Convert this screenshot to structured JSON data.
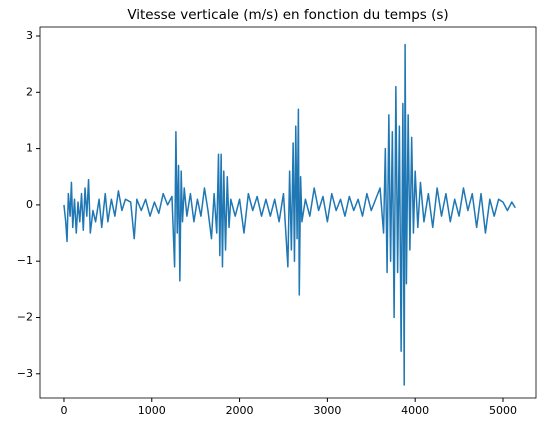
{
  "chart_data": {
    "type": "line",
    "title": "Vitesse verticale (m/s) en fonction du temps (s)",
    "color": "#1f77b4",
    "x": [
      0,
      20,
      35,
      50,
      70,
      85,
      100,
      120,
      140,
      160,
      180,
      200,
      220,
      240,
      260,
      280,
      300,
      330,
      360,
      400,
      430,
      470,
      500,
      540,
      580,
      620,
      660,
      700,
      760,
      800,
      830,
      880,
      930,
      980,
      1030,
      1080,
      1130,
      1180,
      1230,
      1260,
      1275,
      1290,
      1305,
      1320,
      1335,
      1350,
      1370,
      1400,
      1440,
      1480,
      1520,
      1560,
      1600,
      1640,
      1680,
      1710,
      1740,
      1760,
      1775,
      1790,
      1805,
      1820,
      1840,
      1860,
      1880,
      1900,
      1950,
      2000,
      2050,
      2100,
      2150,
      2200,
      2250,
      2300,
      2350,
      2400,
      2450,
      2500,
      2550,
      2570,
      2590,
      2610,
      2625,
      2640,
      2655,
      2670,
      2680,
      2695,
      2710,
      2750,
      2800,
      2850,
      2900,
      2950,
      3000,
      3050,
      3100,
      3150,
      3200,
      3250,
      3300,
      3350,
      3400,
      3450,
      3500,
      3550,
      3600,
      3640,
      3660,
      3680,
      3700,
      3720,
      3740,
      3760,
      3780,
      3800,
      3820,
      3840,
      3860,
      3875,
      3885,
      3900,
      3920,
      3940,
      3960,
      3980,
      4000,
      4030,
      4060,
      4100,
      4150,
      4200,
      4250,
      4300,
      4350,
      4400,
      4450,
      4500,
      4550,
      4600,
      4650,
      4700,
      4750,
      4800,
      4850,
      4900,
      4950,
      5000,
      5050,
      5100,
      5140
    ],
    "values": [
      0,
      -0.3,
      -0.65,
      0.2,
      -0.2,
      0.4,
      -0.4,
      0.1,
      -0.5,
      0.05,
      -0.3,
      0.2,
      -0.45,
      0.3,
      -0.2,
      0.45,
      -0.5,
      -0.1,
      -0.3,
      0.1,
      -0.4,
      0.2,
      -0.3,
      0.1,
      -0.2,
      0.25,
      -0.1,
      0.1,
      0.05,
      -0.6,
      0.1,
      -0.1,
      0.1,
      -0.2,
      0.05,
      -0.15,
      0.2,
      0,
      0.15,
      -1.1,
      1.3,
      -0.5,
      0.7,
      -1.35,
      0.6,
      -0.3,
      0.3,
      -0.2,
      0.2,
      -0.3,
      0.1,
      -0.2,
      0.3,
      -0.1,
      -0.6,
      0.2,
      -0.5,
      0.9,
      -0.9,
      0.9,
      -1.1,
      0.6,
      -0.8,
      0.5,
      -0.4,
      0.1,
      -0.2,
      0.1,
      -0.5,
      0.2,
      -0.1,
      0.15,
      -0.2,
      0.1,
      -0.2,
      0.1,
      -0.3,
      0.2,
      -1.1,
      0.6,
      -0.8,
      1.1,
      -1.0,
      1.4,
      -0.6,
      1.7,
      -1.6,
      0.5,
      -0.3,
      0.1,
      -0.2,
      0.3,
      -0.1,
      0.15,
      -0.3,
      0.2,
      -0.1,
      0.1,
      -0.2,
      0.15,
      -0.1,
      0.1,
      -0.2,
      0.2,
      -0.1,
      0.1,
      0.3,
      -0.5,
      1.0,
      -1.2,
      1.6,
      -1.0,
      1.3,
      -2.0,
      2.1,
      -1.2,
      1.4,
      -2.6,
      1.8,
      -3.2,
      2.85,
      -1.4,
      1.6,
      -0.8,
      1.2,
      -0.5,
      0.6,
      -0.4,
      0.4,
      -0.3,
      0.2,
      -0.4,
      0.3,
      -0.2,
      0.2,
      -0.3,
      0.1,
      -0.2,
      0.3,
      -0.1,
      0.2,
      -0.4,
      0.2,
      -0.5,
      0.1,
      -0.2,
      0.1,
      0.05,
      -0.1,
      0.05,
      -0.05
    ],
    "xlim": [
      -273,
      5376
    ],
    "ylim": [
      -3.43,
      3.16
    ],
    "xticks": [
      0,
      1000,
      2000,
      3000,
      4000,
      5000
    ],
    "yticks": [
      {
        "value": -3,
        "label": "−3"
      },
      {
        "value": -2,
        "label": "−2"
      },
      {
        "value": -1,
        "label": "−1"
      },
      0,
      1,
      2,
      3
    ]
  }
}
